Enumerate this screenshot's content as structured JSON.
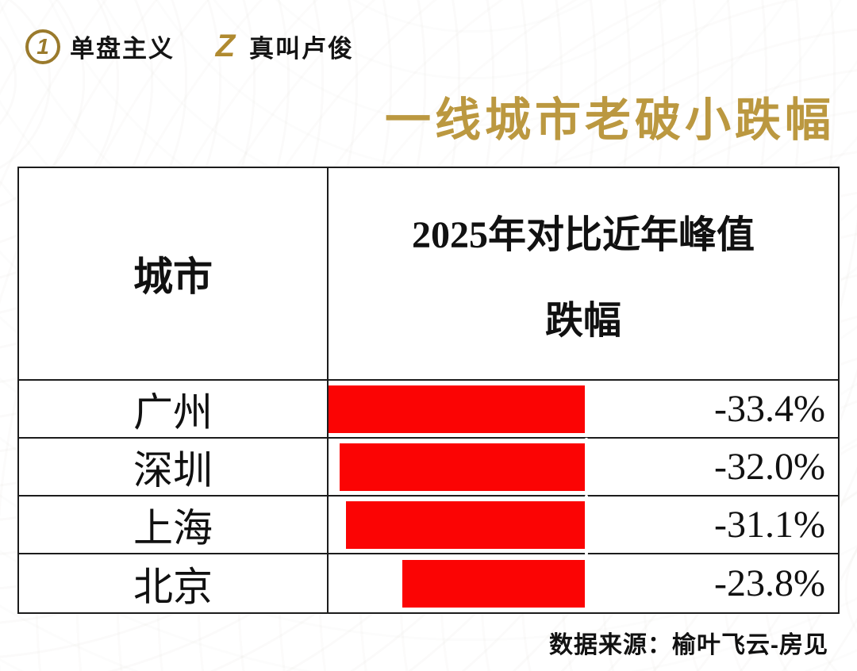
{
  "header": {
    "logo1": {
      "icon": "1",
      "text": "单盘主义"
    },
    "logo2": {
      "icon": "Z",
      "text": "真叫卢俊"
    },
    "title": "一线城市老破小跌幅"
  },
  "table": {
    "col1_header": "城市",
    "col2_header_line1": "2025年对比近年峰值",
    "col2_header_line2": "跌幅",
    "rows": [
      {
        "city": "广州",
        "value": -33.4,
        "label": "-33.4%"
      },
      {
        "city": "深圳",
        "value": -32.0,
        "label": "-32.0%"
      },
      {
        "city": "上海",
        "value": -31.1,
        "label": "-31.1%"
      },
      {
        "city": "北京",
        "value": -23.8,
        "label": "-23.8%"
      }
    ]
  },
  "footer": {
    "source": "数据来源：榆叶飞云-房见"
  },
  "colors": {
    "accent_gold": "#bb9840",
    "logo_gold": "#9a7a2c",
    "bar_red": "#fb0404"
  },
  "chart_data": {
    "type": "bar",
    "orientation": "horizontal",
    "title": "一线城市老破小跌幅",
    "series_name": "2025年对比近年峰值跌幅",
    "categories": [
      "广州",
      "深圳",
      "上海",
      "北京"
    ],
    "values": [
      -33.4,
      -32.0,
      -31.1,
      -23.8
    ],
    "value_labels": [
      "-33.4%",
      "-32.0%",
      "-31.1%",
      "-23.8%"
    ],
    "bar_color": "#fb0404",
    "legend_position": "none",
    "grid": false,
    "source": "数据来源：榆叶飞云-房见"
  }
}
